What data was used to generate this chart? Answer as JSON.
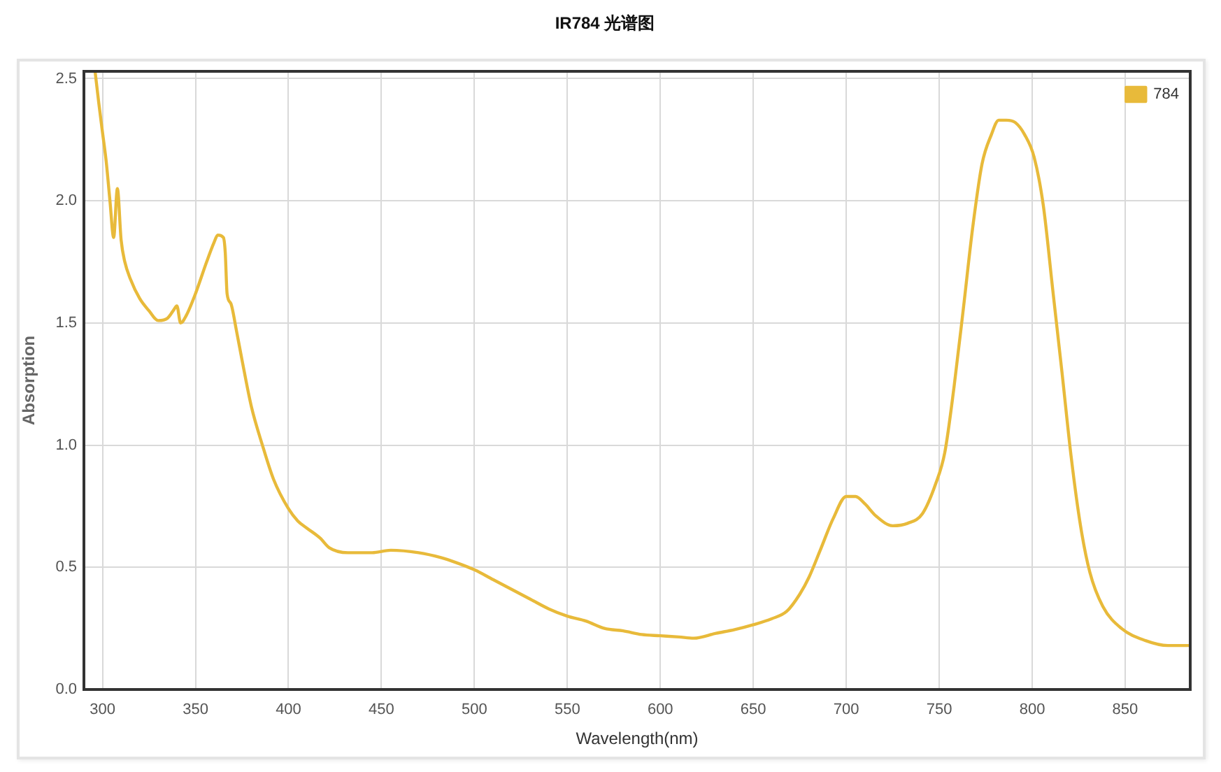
{
  "chart_data": {
    "type": "line",
    "title": "IR784 光谱图",
    "xlabel": "Wavelength(nm)",
    "ylabel": "Absorption",
    "x": [
      296,
      298,
      300,
      302,
      304,
      306,
      308,
      310,
      312,
      315,
      320,
      325,
      330,
      335,
      338,
      340,
      342,
      345,
      350,
      356,
      360,
      362,
      365,
      366,
      367,
      369,
      372,
      375,
      380,
      386,
      392,
      400,
      405,
      410,
      417,
      422,
      432,
      445,
      455,
      470,
      482,
      490,
      500,
      510,
      520,
      530,
      540,
      550,
      560,
      570,
      580,
      590,
      600,
      610,
      618,
      630,
      640,
      650,
      660,
      668,
      675,
      680,
      686,
      693,
      700,
      705,
      710,
      716,
      725,
      733,
      741,
      748,
      753,
      758,
      763,
      768,
      773,
      778,
      782,
      786,
      791,
      796,
      801,
      806,
      811,
      816,
      821,
      826,
      831,
      838,
      848,
      861,
      873,
      884
    ],
    "series": [
      {
        "name": "784",
        "color": "#e8ba3a",
        "values": [
          2.53,
          2.4,
          2.28,
          2.16,
          2.0,
          1.85,
          2.05,
          1.84,
          1.75,
          1.68,
          1.6,
          1.55,
          1.51,
          1.52,
          1.55,
          1.57,
          1.5,
          1.53,
          1.62,
          1.75,
          1.83,
          1.86,
          1.85,
          1.79,
          1.62,
          1.58,
          1.47,
          1.35,
          1.16,
          1.0,
          0.86,
          0.74,
          0.69,
          0.66,
          0.62,
          0.58,
          0.56,
          0.56,
          0.57,
          0.56,
          0.54,
          0.52,
          0.49,
          0.45,
          0.41,
          0.37,
          0.33,
          0.3,
          0.28,
          0.25,
          0.24,
          0.225,
          0.22,
          0.215,
          0.21,
          0.23,
          0.245,
          0.265,
          0.29,
          0.32,
          0.39,
          0.46,
          0.57,
          0.7,
          0.79,
          0.79,
          0.76,
          0.71,
          0.67,
          0.68,
          0.72,
          0.84,
          0.97,
          1.24,
          1.56,
          1.89,
          2.15,
          2.27,
          2.33,
          2.33,
          2.32,
          2.27,
          2.18,
          1.98,
          1.64,
          1.3,
          0.95,
          0.67,
          0.48,
          0.34,
          0.25,
          0.2,
          0.18,
          0.18
        ]
      }
    ],
    "xlim": [
      290,
      885
    ],
    "xticks": [
      300,
      350,
      400,
      450,
      500,
      550,
      600,
      650,
      700,
      750,
      800,
      850
    ],
    "ylim": [
      0,
      2.53
    ],
    "yticks": [
      {
        "value": 0,
        "label": "0.0"
      },
      0.5,
      {
        "value": 1,
        "label": "1.0"
      },
      1.5,
      {
        "value": 2,
        "label": "2.0"
      },
      2.5
    ],
    "grid": true,
    "legend": "top right",
    "marker": "none",
    "line_style": "solid"
  }
}
